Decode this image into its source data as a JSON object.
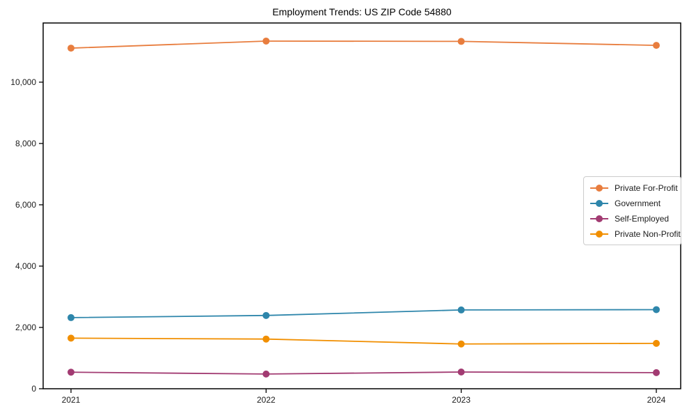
{
  "chart_data": {
    "type": "line",
    "title": "Employment Trends: US ZIP Code 54880",
    "x": [
      "2021",
      "2022",
      "2023",
      "2024"
    ],
    "series": [
      {
        "name": "Private For-Profit",
        "color": "#E87D3E",
        "values": [
          11110,
          11340,
          11330,
          11200
        ]
      },
      {
        "name": "Government",
        "color": "#2E86AB",
        "values": [
          2320,
          2390,
          2570,
          2580
        ]
      },
      {
        "name": "Self-Employed",
        "color": "#A23B72",
        "values": [
          540,
          480,
          545,
          525
        ]
      },
      {
        "name": "Private Non-Profit",
        "color": "#F18F01",
        "values": [
          1650,
          1620,
          1460,
          1480
        ]
      }
    ],
    "xlabel": "",
    "ylabel": "",
    "ylim": [
      0,
      11930
    ],
    "yticks": {
      "values": [
        0,
        2000,
        4000,
        6000,
        8000,
        10000
      ],
      "labels": [
        "0",
        "2,000",
        "4,000",
        "6,000",
        "8,000",
        "10,000"
      ]
    },
    "grid": "off",
    "legend_position": "middle-right",
    "spine_color": "#000000",
    "tick_label_color": "#1a1a1a"
  }
}
